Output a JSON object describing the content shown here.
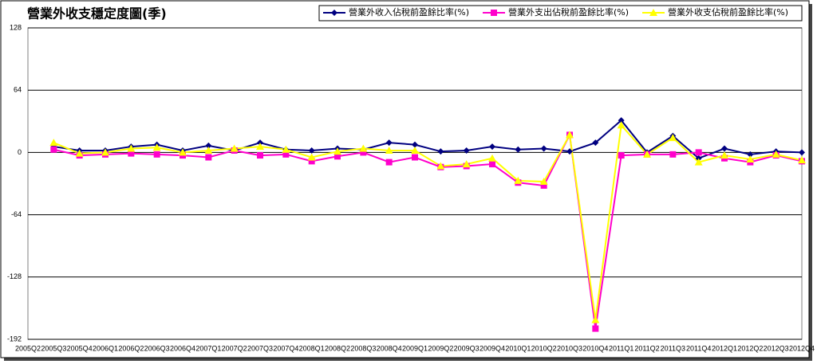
{
  "chart_data": {
    "type": "line",
    "title": "營業外收支穩定度圖(季)",
    "categories": [
      "2005Q2",
      "2005Q3",
      "2005Q4",
      "2006Q1",
      "2006Q2",
      "2006Q3",
      "2006Q4",
      "2007Q1",
      "2007Q2",
      "2007Q3",
      "2007Q4",
      "2008Q1",
      "2008Q2",
      "2008Q3",
      "2008Q4",
      "2009Q1",
      "2009Q2",
      "2009Q3",
      "2009Q4",
      "2010Q1",
      "2010Q2",
      "2010Q3",
      "2010Q4",
      "2011Q1",
      "2011Q2",
      "2011Q3",
      "2011Q4",
      "2012Q1",
      "2012Q2",
      "2012Q3",
      "2012Q4"
    ],
    "series": [
      {
        "name": "營業外收入佔稅前盈餘比率(%)",
        "color": "#000080",
        "marker": "diamond",
        "values": [
          null,
          6,
          2,
          2,
          6,
          8,
          2,
          7,
          2,
          10,
          3,
          2,
          4,
          3,
          10,
          8,
          1,
          2,
          6,
          3,
          4,
          1,
          10,
          33,
          0,
          17,
          -6,
          4,
          -2,
          1,
          0
        ]
      },
      {
        "name": "營業外支出佔稅前盈餘比率(%)",
        "color": "#ff00cc",
        "marker": "square",
        "values": [
          null,
          3,
          -3,
          -2,
          -1,
          -2,
          -3,
          -5,
          2,
          -3,
          -2,
          -9,
          -4,
          0,
          -10,
          -5,
          -15,
          -14,
          -12,
          -31,
          -34,
          18,
          -181,
          -3,
          -2,
          -2,
          0,
          -6,
          -10,
          -3,
          -9
        ]
      },
      {
        "name": "營業外收支佔稅前盈餘比率(%)",
        "color": "#ffff00",
        "marker": "triangle",
        "values": [
          null,
          10,
          -1,
          0,
          4,
          5,
          0,
          2,
          4,
          6,
          3,
          -5,
          1,
          4,
          2,
          2,
          -14,
          -12,
          -6,
          -29,
          -30,
          18,
          -172,
          28,
          -2,
          15,
          -10,
          -3,
          -7,
          -2,
          -8
        ]
      }
    ],
    "ylim": [
      -192,
      128
    ],
    "yticks": [
      -192,
      -128,
      -64,
      0,
      64,
      128
    ],
    "grid": true,
    "legend": "top-right"
  }
}
